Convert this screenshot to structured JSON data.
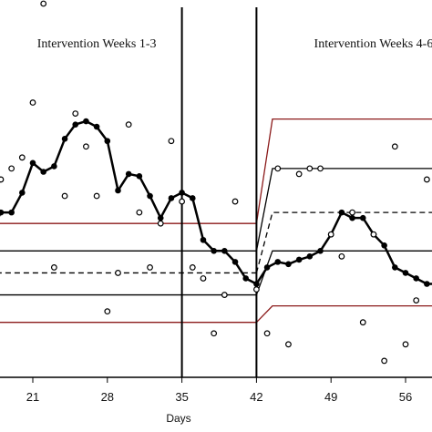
{
  "chart_data": {
    "type": "scatter",
    "xlabel": "Days",
    "ylabel": "",
    "xlim": [
      15,
      60
    ],
    "ylim": [
      -4,
      30
    ],
    "x_ticks": [
      21,
      28,
      35,
      42,
      49,
      56
    ],
    "grid": false,
    "legend": "none",
    "phase_lines": [
      35,
      42
    ],
    "phase_labels": [
      {
        "text": "Intervention Weeks 1-3",
        "x_center": 27
      },
      {
        "text": "Intervention Weeks 4-6",
        "x_center": 53
      }
    ],
    "colors": {
      "raw": "#000000",
      "smooth": "#000000",
      "control": "#8b1a1a",
      "sigma": "#000000",
      "mean": "#000000"
    },
    "series": [
      {
        "kind": "raw",
        "marker": "open-circle",
        "x": [
          16,
          17,
          18,
          19,
          20,
          21,
          22,
          23,
          24,
          25,
          26,
          27,
          28,
          29,
          30,
          31,
          32,
          33,
          34,
          35,
          36,
          37,
          38,
          39,
          40,
          42,
          43,
          44,
          45,
          46,
          47,
          48,
          49,
          50,
          51,
          52,
          53,
          54,
          55,
          56,
          57,
          58,
          59
        ],
        "y": [
          6,
          9,
          14,
          15,
          16,
          21,
          30,
          6,
          12.5,
          20,
          17,
          12.5,
          2,
          5.5,
          19,
          11,
          6,
          10,
          17.5,
          12,
          6,
          5,
          0,
          3.5,
          12,
          4,
          0,
          15,
          -1,
          14.5,
          15,
          15,
          9,
          7,
          11,
          1,
          9,
          -2.5,
          17,
          -1,
          3,
          14,
          13
        ]
      },
      {
        "kind": "smooth",
        "marker": "filled-circle",
        "x": [
          15.5,
          16,
          17,
          18,
          19,
          20,
          21,
          22,
          23,
          24,
          25,
          26,
          27,
          28,
          29,
          30,
          31,
          32,
          33,
          34,
          35,
          36,
          37,
          38,
          39,
          40,
          41,
          42,
          43,
          44,
          45,
          46,
          47,
          48,
          49,
          50,
          51,
          52,
          53,
          54,
          55,
          56,
          57,
          58,
          59,
          60
        ],
        "y": [
          9,
          9,
          9,
          11,
          11,
          12.8,
          15.5,
          14.7,
          15.2,
          17.7,
          19,
          19.3,
          18.8,
          17.5,
          13,
          14.5,
          14.3,
          12.5,
          10.5,
          12.3,
          12.8,
          12.3,
          8.5,
          7.5,
          7.5,
          6.5,
          5,
          4.5,
          6,
          6.5,
          6.3,
          6.7,
          7,
          7.5,
          9,
          11,
          10.5,
          10.5,
          9,
          8,
          6,
          5.5,
          5,
          4.5,
          4.5,
          5
        ]
      }
    ],
    "phases": [
      {
        "x_start": 15,
        "x_end": 42,
        "ucl": 10,
        "upper_1sigma": 7.5,
        "mean": 5.5,
        "lower_1sigma": 3.5,
        "lcl": 1
      },
      {
        "x_start": 42,
        "x_end": 60,
        "ucl": 19.5,
        "upper_1sigma": 15,
        "mean": 11,
        "lower_1sigma": 7.5,
        "lcl": 2.5
      }
    ]
  }
}
